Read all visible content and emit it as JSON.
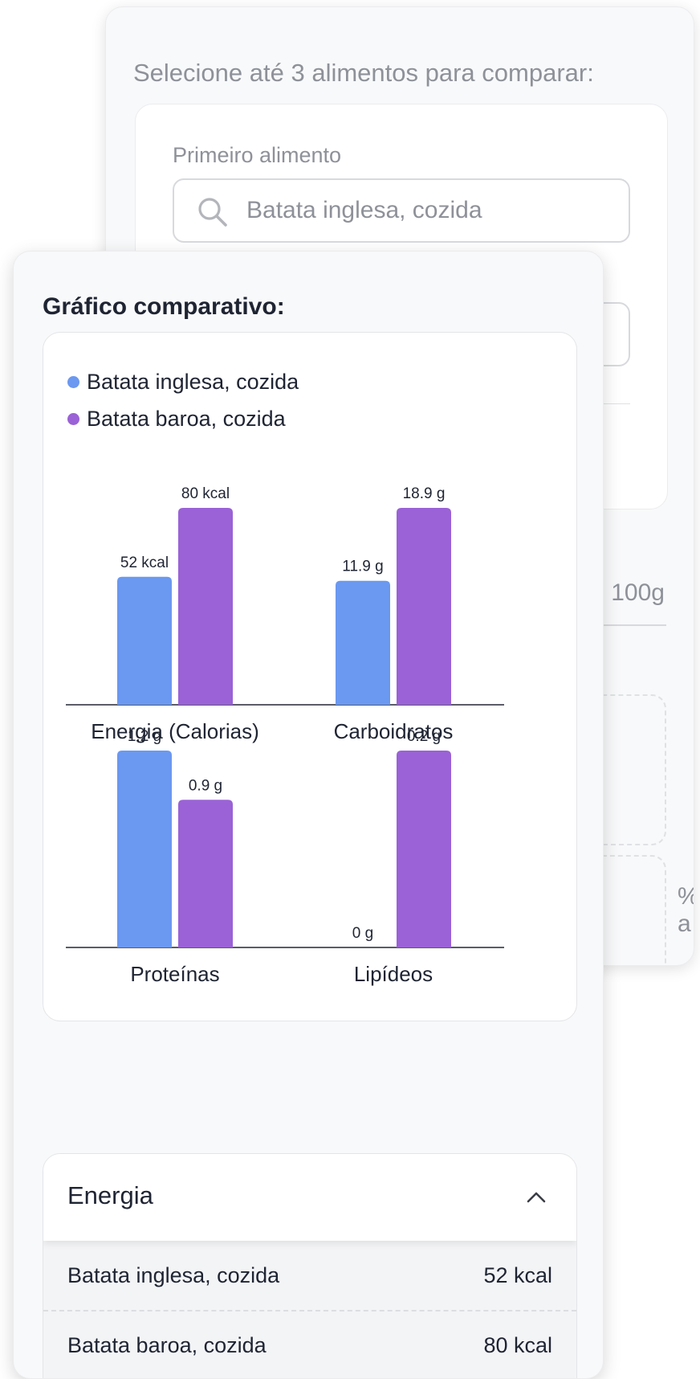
{
  "form": {
    "heading": "Selecione até 3 alimentos para comparar:",
    "first_label": "Primeiro alimento",
    "first_value": "Batata inglesa, cozida",
    "portion_partial": ": 100g",
    "percent_partial": "% a"
  },
  "chart_section": {
    "heading": "Gráfico comparativo:"
  },
  "colors": {
    "series_1": "#6b98f0",
    "series_2": "#9a62d6",
    "axis": "#5a5d66"
  },
  "chart_data": {
    "type": "bar",
    "legend_position": "top-left",
    "series_names": [
      "Batata inglesa, cozida",
      "Batata baroa, cozida"
    ],
    "groups": [
      {
        "category": "Energia (Calorias)",
        "values": [
          52,
          80
        ],
        "labels": [
          "52 kcal",
          "80 kcal"
        ]
      },
      {
        "category": "Carboidratos",
        "values": [
          11.9,
          18.9
        ],
        "labels": [
          "11.9 g",
          "18.9 g"
        ]
      },
      {
        "category": "Proteínas",
        "values": [
          1.2,
          0.9
        ],
        "labels": [
          "1.2 g",
          "0.9 g"
        ]
      },
      {
        "category": "Lipídeos",
        "values": [
          0,
          0.2
        ],
        "labels": [
          "0 g",
          "0.2 g"
        ]
      }
    ]
  },
  "accordion": {
    "title": "Energia",
    "expanded": true,
    "rows": [
      {
        "name": "Batata inglesa, cozida",
        "value": "52 kcal"
      },
      {
        "name": "Batata baroa, cozida",
        "value": "80 kcal"
      }
    ]
  }
}
